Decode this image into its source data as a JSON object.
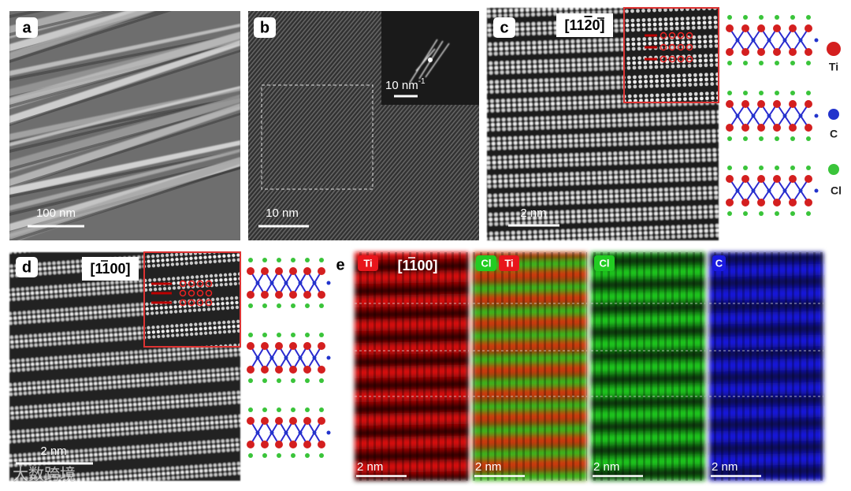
{
  "panels": {
    "a": {
      "label": "a",
      "scale_bar": "100 nm"
    },
    "b": {
      "label": "b",
      "scale_bar": "10 nm",
      "inset_scale_bar": {
        "text": "10 nm",
        "superscript": "-1"
      }
    },
    "c": {
      "label": "c",
      "zone_axis": [
        "[11",
        "2",
        "0]"
      ],
      "scale_bar": "2 nm"
    },
    "d": {
      "label": "d",
      "zone_axis": [
        "[1",
        "1",
        "00]"
      ],
      "scale_bar": "2 nm"
    },
    "e": {
      "label": "e",
      "zone_axis": [
        "[1",
        "1",
        "00]"
      ],
      "maps": [
        {
          "tags": [
            {
              "text": "Ti",
              "color": "#e8151b"
            }
          ],
          "scale_bar": "2 nm"
        },
        {
          "tags": [
            {
              "text": "Cl",
              "color": "#22cc22"
            },
            {
              "text": "Ti",
              "color": "#e8151b"
            }
          ],
          "scale_bar": "2 nm"
        },
        {
          "tags": [
            {
              "text": "Cl",
              "color": "#22cc22"
            }
          ],
          "scale_bar": "2 nm"
        },
        {
          "tags": [
            {
              "text": "C",
              "color": "#1a1ae0"
            }
          ],
          "scale_bar": "2 nm"
        }
      ]
    }
  },
  "legend": [
    "Ti",
    "C",
    "Cl"
  ],
  "watermark": "大数跨境"
}
